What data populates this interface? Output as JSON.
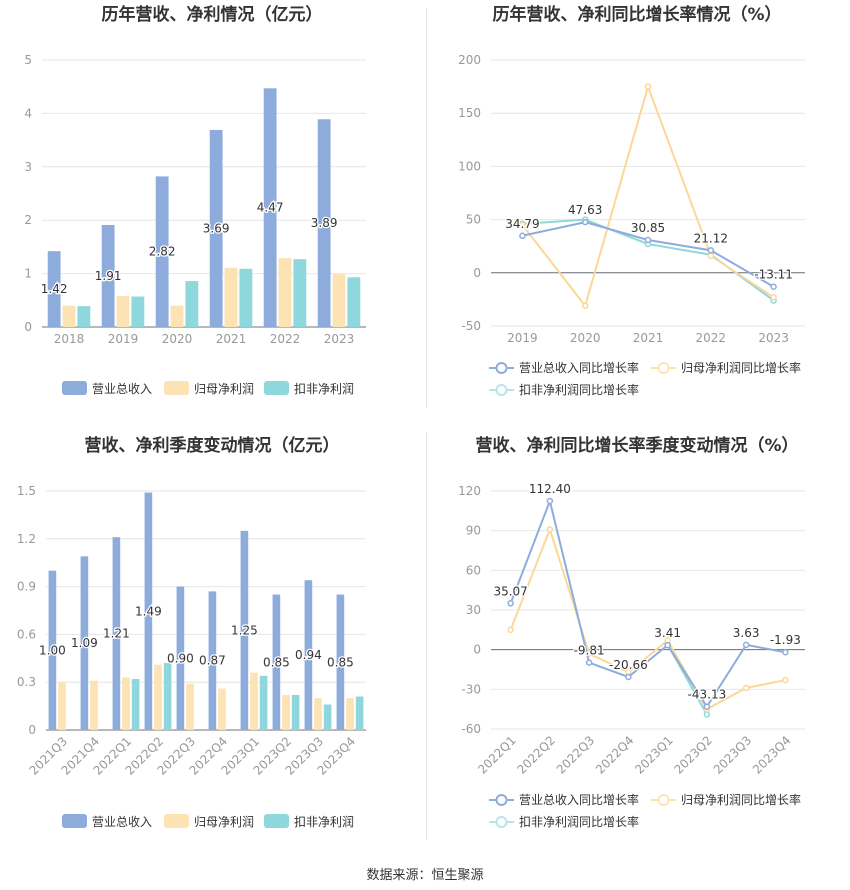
{
  "source_label": "数据来源：恒生聚源",
  "colors": {
    "revenue": "#8eacdb",
    "net_profit": "#fde3b3",
    "deducted_profit": "#8dd7dd",
    "axis_text": "#999999",
    "grid": "#e6e6e6",
    "label_text": "#333333"
  },
  "chart_data": [
    {
      "id": "annual-bar",
      "type": "bar",
      "title": "历年营收、净利情况（亿元）",
      "categories": [
        "2018",
        "2019",
        "2020",
        "2021",
        "2022",
        "2023"
      ],
      "ylim": [
        0,
        5
      ],
      "yticks": [
        0,
        1,
        2,
        3,
        4,
        5
      ],
      "series": [
        {
          "name": "营业总收入",
          "values": [
            1.42,
            1.91,
            2.82,
            3.69,
            4.47,
            3.89
          ],
          "labels": [
            "1.42",
            "1.91",
            "2.82",
            "3.69",
            "4.47",
            "3.89"
          ]
        },
        {
          "name": "归母净利润",
          "values": [
            0.4,
            0.58,
            0.4,
            1.11,
            1.29,
            0.99
          ]
        },
        {
          "name": "扣非净利润",
          "values": [
            0.39,
            0.57,
            0.86,
            1.09,
            1.27,
            0.93
          ]
        }
      ],
      "legend": "bottom",
      "grid": true
    },
    {
      "id": "annual-line",
      "type": "line",
      "title": "历年营收、净利同比增长率情况（%）",
      "categories": [
        "2019",
        "2020",
        "2021",
        "2022",
        "2023"
      ],
      "ylim": [
        -50,
        200
      ],
      "yticks": [
        -50,
        0,
        50,
        100,
        150,
        200
      ],
      "series": [
        {
          "name": "营业总收入同比增长率",
          "values": [
            34.79,
            47.63,
            30.85,
            21.12,
            -13.11
          ],
          "labels": [
            "34.79",
            "47.63",
            "30.85",
            "21.12",
            "-13.11"
          ]
        },
        {
          "name": "归母净利润同比增长率",
          "values": [
            45,
            -31,
            175,
            16,
            -23
          ]
        },
        {
          "name": "扣非净利润同比增长率",
          "values": [
            46,
            50,
            27,
            17,
            -26
          ]
        }
      ],
      "legend": "bottom",
      "grid": true
    },
    {
      "id": "quarter-bar",
      "type": "bar",
      "title": "营收、净利季度变动情况（亿元）",
      "categories": [
        "2021Q3",
        "2021Q4",
        "2022Q1",
        "2022Q2",
        "2022Q3",
        "2022Q4",
        "2023Q1",
        "2023Q2",
        "2023Q3",
        "2023Q4"
      ],
      "ylim": [
        0,
        1.5
      ],
      "yticks": [
        0,
        0.3,
        0.6,
        0.9,
        1.2,
        1.5
      ],
      "series": [
        {
          "name": "营业总收入",
          "values": [
            1.0,
            1.09,
            1.21,
            1.49,
            0.9,
            0.87,
            1.25,
            0.85,
            0.94,
            0.85
          ],
          "labels": [
            "1.00",
            "1.09",
            "1.21",
            "1.49",
            "0.90",
            "0.87",
            "1.25",
            "0.85",
            "0.94",
            "0.85"
          ]
        },
        {
          "name": "归母净利润",
          "values": [
            0.3,
            0.31,
            0.33,
            0.41,
            0.29,
            0.26,
            0.36,
            0.22,
            0.2,
            0.2
          ]
        },
        {
          "name": "扣非净利润",
          "values": [
            0,
            0,
            0.32,
            0.42,
            0,
            0,
            0.34,
            0.22,
            0.16,
            0.21
          ]
        }
      ],
      "legend": "bottom",
      "grid": true
    },
    {
      "id": "quarter-line",
      "type": "line",
      "title": "营收、净利同比增长率季度变动情况（%）",
      "categories": [
        "2022Q1",
        "2022Q2",
        "2022Q3",
        "2022Q4",
        "2023Q1",
        "2023Q2",
        "2023Q3",
        "2023Q4"
      ],
      "ylim": [
        -60,
        120
      ],
      "yticks": [
        -60,
        -30,
        0,
        30,
        60,
        90,
        120
      ],
      "series": [
        {
          "name": "营业总收入同比增长率",
          "values": [
            35.07,
            112.4,
            -9.81,
            -20.66,
            3.41,
            -43.13,
            3.63,
            -1.93
          ],
          "labels": [
            "35.07",
            "112.40",
            "-9.81",
            "-20.66",
            "3.41",
            "-43.13",
            "3.63",
            "-1.93"
          ]
        },
        {
          "name": "归母净利润同比增长率",
          "values": [
            15,
            91,
            -3,
            -17,
            7,
            -45,
            -29,
            -23
          ]
        },
        {
          "name": "扣非净利润同比增长率",
          "values": [
            null,
            null,
            null,
            null,
            4,
            -49,
            null,
            null
          ]
        }
      ],
      "legend": "bottom",
      "grid": true
    }
  ]
}
